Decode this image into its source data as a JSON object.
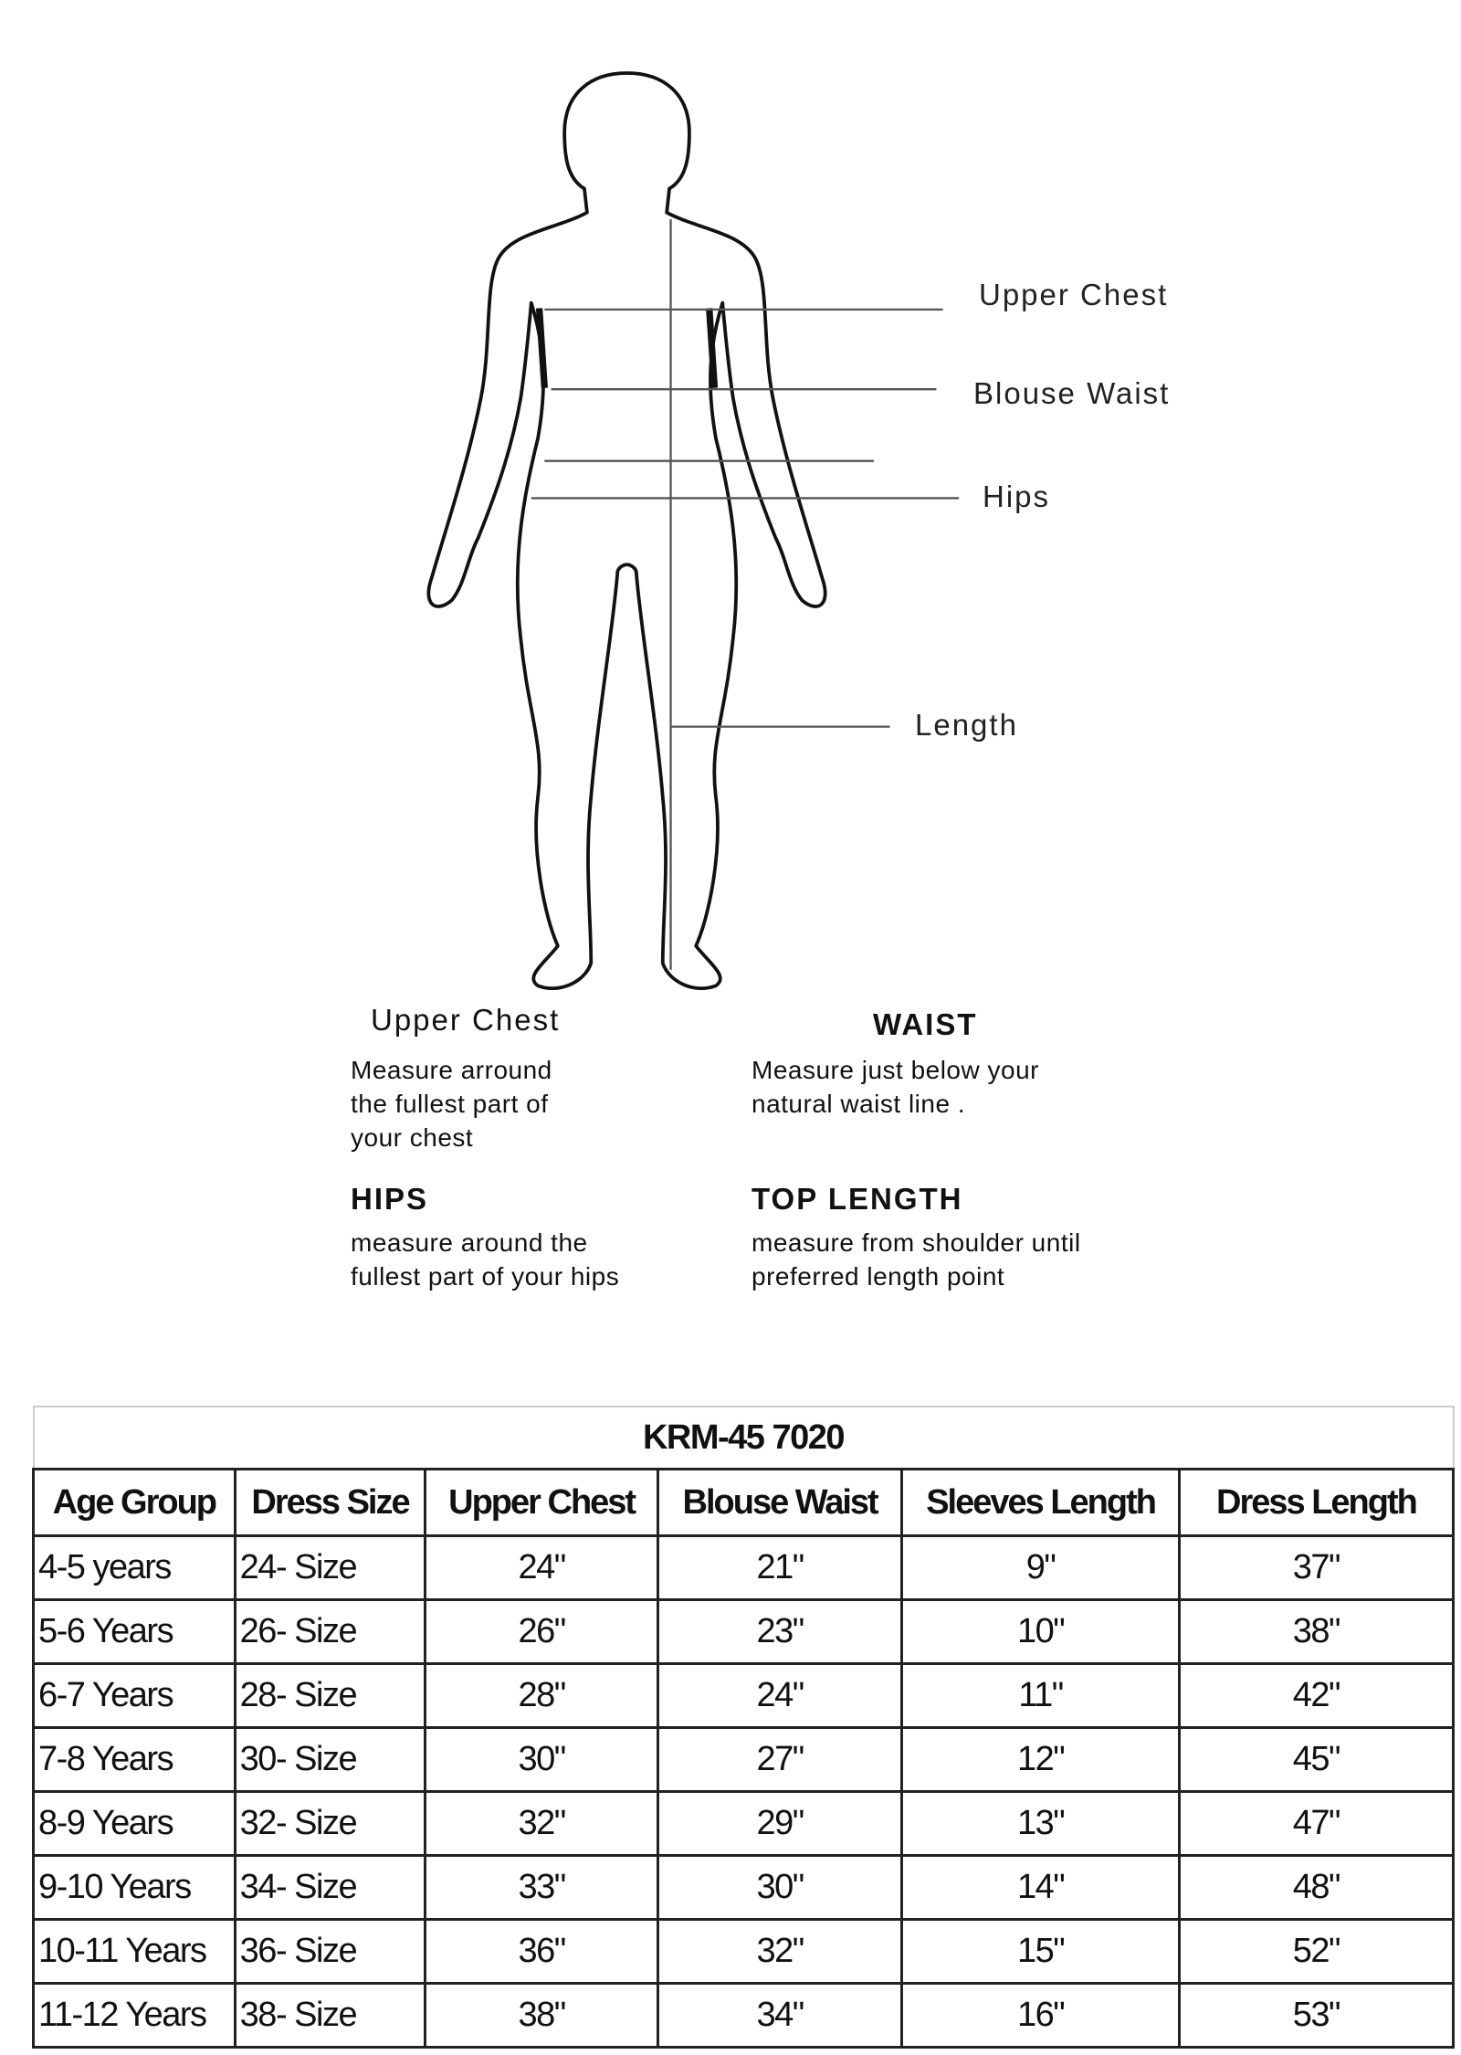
{
  "diagram": {
    "labels": {
      "upper_chest": "Upper Chest",
      "blouse_waist": "Blouse Waist",
      "hips": "Hips",
      "length": "Length"
    }
  },
  "instructions": [
    {
      "heading": "Upper Chest",
      "lines": [
        "Measure arround",
        "the fullest part of",
        "your chest"
      ]
    },
    {
      "heading": "WAIST",
      "lines": [
        "Measure just below your",
        "natural waist line ."
      ]
    },
    {
      "heading": "HIPS",
      "lines": [
        "measure around the",
        "fullest part of your hips"
      ]
    },
    {
      "heading": "TOP LENGTH",
      "lines": [
        "measure from shoulder until",
        "preferred length point"
      ]
    }
  ],
  "size_table": {
    "title": "KRM-45 7020",
    "headers": [
      "Age Group",
      "Dress Size",
      "Upper Chest",
      "Blouse Waist",
      "Sleeves Length",
      "Dress Length"
    ],
    "rows": [
      [
        "4-5 years",
        "24- Size",
        "24\"",
        "21\"",
        "9\"",
        "37\""
      ],
      [
        "5-6 Years",
        "26- Size",
        "26\"",
        "23\"",
        "10\"",
        "38\""
      ],
      [
        "6-7 Years",
        "28- Size",
        "28\"",
        "24\"",
        "11\"",
        "42\""
      ],
      [
        "7-8 Years",
        "30- Size",
        "30\"",
        "27\"",
        "12\"",
        "45\""
      ],
      [
        "8-9 Years",
        "32- Size",
        "32\"",
        "29\"",
        "13\"",
        "47\""
      ],
      [
        "9-10 Years",
        "34- Size",
        "33\"",
        "30\"",
        "14\"",
        "48\""
      ],
      [
        "10-11 Years",
        "36- Size",
        "36\"",
        "32\"",
        "15\"",
        "52\""
      ],
      [
        "11-12 Years",
        "38- Size",
        "38\"",
        "34\"",
        "16\"",
        "53\""
      ]
    ]
  }
}
